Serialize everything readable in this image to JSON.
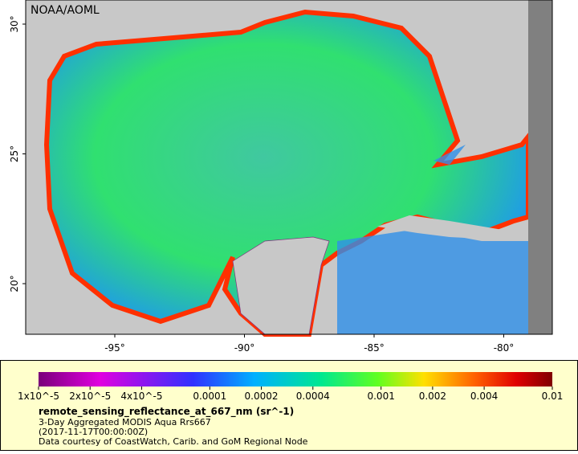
{
  "map": {
    "credit": "NOAA/AOML",
    "lat_ticks": [
      {
        "value": 30,
        "label": "30°"
      },
      {
        "value": 25,
        "label": "25°"
      },
      {
        "value": 20,
        "label": "20°"
      }
    ],
    "lon_ticks": [
      {
        "value": -95,
        "label": "-95°"
      },
      {
        "value": -90,
        "label": "-90°"
      },
      {
        "value": -85,
        "label": "-85°"
      },
      {
        "value": -80,
        "label": "-80°"
      }
    ]
  },
  "colorbar": {
    "scale": "log",
    "range": [
      1e-05,
      0.01
    ],
    "ticks": [
      {
        "value": 1e-05,
        "label": "1x10^-5"
      },
      {
        "value": 2e-05,
        "label": "2x10^-5"
      },
      {
        "value": 4e-05,
        "label": "4x10^-5"
      },
      0.0001,
      0.0002,
      0.0004,
      0.001,
      0.002,
      0.004,
      0.01
    ],
    "title": "remote_sensing_reflectance_at_667_nm (sr^-1)",
    "lines": [
      "3-Day Aggregated MODIS Aqua Rrs667",
      "(2017-11-17T00:00:00Z)",
      "Data courtesy of CoastWatch, Carib. and GoM Regional Node"
    ]
  }
}
